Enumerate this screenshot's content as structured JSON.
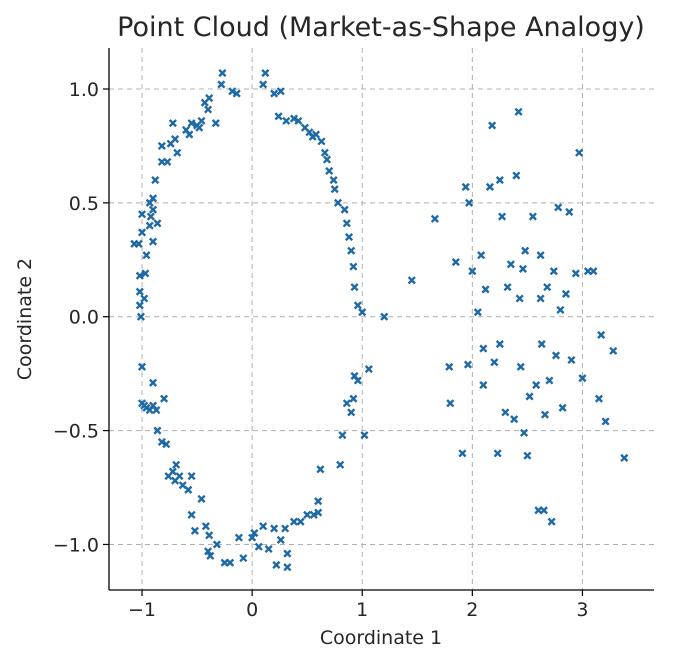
{
  "chart_data": {
    "type": "scatter",
    "title": "Point Cloud (Market-as-Shape Analogy)",
    "xlabel": "Coordinate 1",
    "ylabel": "Coordinate 2",
    "xlim": [
      -1.3,
      3.65
    ],
    "ylim": [
      -1.2,
      1.18
    ],
    "xticks": [
      -1,
      0,
      1,
      2,
      3
    ],
    "xtick_labels": [
      "−1",
      "0",
      "1",
      "2",
      "3"
    ],
    "yticks": [
      -1.0,
      -0.5,
      0.0,
      0.5,
      1.0
    ],
    "ytick_labels": [
      "−1.0",
      "−0.5",
      "0.0",
      "0.5",
      "1.0"
    ],
    "grid": true,
    "marker": "x",
    "color": "#1f6aa5",
    "series": [
      {
        "name": "",
        "points": [
          [
            -1.07,
            0.32
          ],
          [
            -1.03,
            0.32
          ],
          [
            -1.02,
            0.18
          ],
          [
            -1.02,
            0.11
          ],
          [
            -1.02,
            0.05
          ],
          [
            -1.01,
            0.0
          ],
          [
            -1.0,
            0.45
          ],
          [
            -1.0,
            0.37
          ],
          [
            -0.98,
            0.08
          ],
          [
            -0.97,
            0.19
          ],
          [
            -0.96,
            0.27
          ],
          [
            -0.93,
            0.4
          ],
          [
            -0.93,
            0.5
          ],
          [
            -0.92,
            0.44
          ],
          [
            -0.9,
            0.47
          ],
          [
            -0.9,
            0.33
          ],
          [
            -0.9,
            0.52
          ],
          [
            -0.88,
            0.6
          ],
          [
            -0.86,
            0.41
          ],
          [
            -0.82,
            0.68
          ],
          [
            -0.82,
            0.75
          ],
          [
            -0.77,
            0.68
          ],
          [
            -0.74,
            0.76
          ],
          [
            -0.72,
            0.85
          ],
          [
            -0.7,
            0.78
          ],
          [
            -0.68,
            0.72
          ],
          [
            -0.6,
            0.82
          ],
          [
            -0.57,
            0.8
          ],
          [
            -0.55,
            0.85
          ],
          [
            -0.5,
            0.84
          ],
          [
            -0.48,
            0.83
          ],
          [
            -0.46,
            0.86
          ],
          [
            -0.43,
            0.94
          ],
          [
            -0.4,
            0.91
          ],
          [
            -0.39,
            0.96
          ],
          [
            -0.33,
            0.85
          ],
          [
            -0.28,
            1.02
          ],
          [
            -0.27,
            1.07
          ],
          [
            -0.18,
            0.99
          ],
          [
            -0.14,
            0.98
          ],
          [
            0.1,
            1.02
          ],
          [
            0.12,
            1.07
          ],
          [
            0.2,
            0.98
          ],
          [
            0.26,
            0.99
          ],
          [
            0.24,
            0.88
          ],
          [
            0.31,
            0.86
          ],
          [
            0.38,
            0.87
          ],
          [
            0.42,
            0.86
          ],
          [
            0.48,
            0.83
          ],
          [
            0.52,
            0.81
          ],
          [
            0.55,
            0.79
          ],
          [
            0.58,
            0.8
          ],
          [
            0.63,
            0.77
          ],
          [
            0.66,
            0.72
          ],
          [
            0.68,
            0.69
          ],
          [
            0.7,
            0.64
          ],
          [
            0.74,
            0.6
          ],
          [
            0.75,
            0.56
          ],
          [
            0.78,
            0.5
          ],
          [
            0.84,
            0.47
          ],
          [
            0.86,
            0.41
          ],
          [
            0.88,
            0.35
          ],
          [
            0.9,
            0.29
          ],
          [
            0.92,
            0.22
          ],
          [
            0.93,
            0.13
          ],
          [
            0.96,
            0.05
          ],
          [
            1.0,
            0.02
          ],
          [
            -1.0,
            -0.22
          ],
          [
            -1.0,
            -0.38
          ],
          [
            -0.98,
            -0.39
          ],
          [
            -0.96,
            -0.4
          ],
          [
            -0.93,
            -0.41
          ],
          [
            -0.9,
            -0.29
          ],
          [
            -0.9,
            -0.39
          ],
          [
            -0.87,
            -0.41
          ],
          [
            -0.86,
            -0.5
          ],
          [
            -0.82,
            -0.55
          ],
          [
            -0.8,
            -0.36
          ],
          [
            -0.78,
            -0.56
          ],
          [
            -0.76,
            -0.7
          ],
          [
            -0.72,
            -0.68
          ],
          [
            -0.7,
            -0.72
          ],
          [
            -0.69,
            -0.65
          ],
          [
            -0.66,
            -0.7
          ],
          [
            -0.63,
            -0.74
          ],
          [
            -0.58,
            -0.76
          ],
          [
            -0.55,
            -0.7
          ],
          [
            -0.55,
            -0.87
          ],
          [
            -0.52,
            -0.94
          ],
          [
            -0.46,
            -0.8
          ],
          [
            -0.42,
            -0.92
          ],
          [
            -0.4,
            -1.03
          ],
          [
            -0.39,
            -0.96
          ],
          [
            -0.38,
            -1.05
          ],
          [
            -0.32,
            -1.0
          ],
          [
            -0.25,
            -1.08
          ],
          [
            -0.2,
            -1.08
          ],
          [
            -0.12,
            -0.97
          ],
          [
            -0.08,
            -1.06
          ],
          [
            0.0,
            -0.97
          ],
          [
            0.02,
            -0.95
          ],
          [
            0.06,
            -1.01
          ],
          [
            0.1,
            -0.92
          ],
          [
            0.15,
            -1.02
          ],
          [
            0.2,
            -0.93
          ],
          [
            0.22,
            -1.09
          ],
          [
            0.26,
            -0.98
          ],
          [
            0.3,
            -0.93
          ],
          [
            0.32,
            -1.04
          ],
          [
            0.32,
            -1.1
          ],
          [
            0.38,
            -0.9
          ],
          [
            0.44,
            -0.9
          ],
          [
            0.5,
            -0.87
          ],
          [
            0.56,
            -0.87
          ],
          [
            0.6,
            -0.81
          ],
          [
            0.6,
            -0.86
          ],
          [
            0.62,
            -0.67
          ],
          [
            0.8,
            -0.65
          ],
          [
            0.82,
            -0.52
          ],
          [
            0.86,
            -0.38
          ],
          [
            0.9,
            -0.42
          ],
          [
            0.92,
            -0.36
          ],
          [
            0.93,
            -0.26
          ],
          [
            0.96,
            -0.28
          ],
          [
            1.02,
            -0.52
          ],
          [
            1.06,
            -0.23
          ],
          [
            1.45,
            0.16
          ],
          [
            1.66,
            0.43
          ],
          [
            1.79,
            -0.22
          ],
          [
            1.8,
            -0.38
          ],
          [
            1.85,
            0.24
          ],
          [
            1.91,
            -0.6
          ],
          [
            1.94,
            0.57
          ],
          [
            1.96,
            -0.21
          ],
          [
            1.97,
            0.5
          ],
          [
            2.0,
            0.2
          ],
          [
            2.05,
            0.02
          ],
          [
            2.08,
            0.27
          ],
          [
            2.12,
            0.12
          ],
          [
            2.1,
            -0.3
          ],
          [
            2.1,
            -0.14
          ],
          [
            2.16,
            0.57
          ],
          [
            2.2,
            -0.2
          ],
          [
            2.23,
            -0.6
          ],
          [
            2.25,
            -0.12
          ],
          [
            2.27,
            0.44
          ],
          [
            2.3,
            -0.42
          ],
          [
            2.32,
            0.13
          ],
          [
            2.35,
            0.23
          ],
          [
            2.38,
            -0.45
          ],
          [
            2.4,
            0.62
          ],
          [
            2.42,
            0.9
          ],
          [
            2.43,
            0.08
          ],
          [
            2.44,
            -0.22
          ],
          [
            2.46,
            0.21
          ],
          [
            2.47,
            -0.51
          ],
          [
            2.48,
            0.29
          ],
          [
            2.5,
            -0.61
          ],
          [
            2.52,
            -0.35
          ],
          [
            2.55,
            0.44
          ],
          [
            2.58,
            -0.3
          ],
          [
            2.6,
            -0.85
          ],
          [
            2.62,
            0.27
          ],
          [
            2.62,
            0.08
          ],
          [
            2.63,
            -0.12
          ],
          [
            2.65,
            -0.85
          ],
          [
            2.66,
            -0.43
          ],
          [
            2.68,
            0.13
          ],
          [
            2.7,
            -0.28
          ],
          [
            2.72,
            -0.9
          ],
          [
            2.74,
            0.2
          ],
          [
            2.76,
            -0.17
          ],
          [
            2.78,
            0.48
          ],
          [
            2.8,
            0.03
          ],
          [
            2.82,
            -0.4
          ],
          [
            2.85,
            0.1
          ],
          [
            2.88,
            0.46
          ],
          [
            2.9,
            -0.19
          ],
          [
            2.94,
            0.19
          ],
          [
            2.97,
            0.72
          ],
          [
            3.0,
            -0.27
          ],
          [
            3.05,
            0.2
          ],
          [
            3.1,
            0.2
          ],
          [
            3.15,
            -0.36
          ],
          [
            3.17,
            -0.08
          ],
          [
            3.21,
            -0.46
          ],
          [
            3.28,
            -0.15
          ],
          [
            3.38,
            -0.62
          ],
          [
            1.2,
            0.0
          ],
          [
            2.18,
            0.84
          ],
          [
            2.25,
            0.6
          ]
        ]
      }
    ]
  }
}
